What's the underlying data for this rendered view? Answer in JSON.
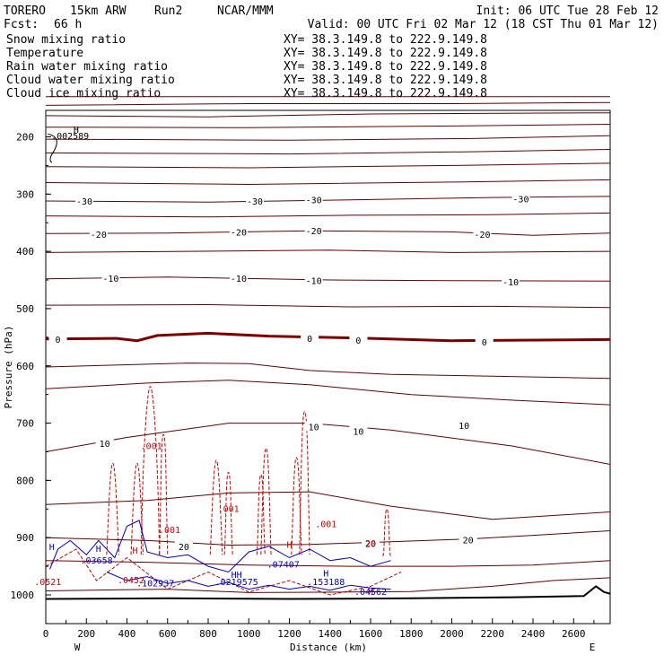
{
  "header": {
    "model": "TORERO",
    "resolution": "15km ARW",
    "run": "Run2",
    "org": "NCAR/MMM",
    "init": "Init: 06 UTC Tue 28 Feb 12",
    "fcst_label": "Fcst:",
    "fcst_value": "66 h",
    "valid": "Valid: 00 UTC Fri 02 Mar 12 (18 CST Thu 01 Mar 12)"
  },
  "colors": {
    "snow": "#000000",
    "temperature": "#660000",
    "rain": "#cc0000",
    "cloud_water": "#0000cc",
    "cloud_ice": "#000000",
    "xy_text": "#cc0000",
    "zero_isotherm": "#800000"
  },
  "chart_data": {
    "type": "cross-section",
    "xlabel": "Distance (km)",
    "ylabel": "Pressure (hPa)",
    "xlim": [
      0,
      2780
    ],
    "ylim": [
      1050,
      130
    ],
    "x_ticks": [
      "0",
      "200",
      "400",
      "600",
      "800",
      "1000",
      "1200",
      "1400",
      "1600",
      "1800",
      "2000",
      "2200",
      "2400",
      "2600"
    ],
    "y_ticks": [
      "200",
      "300",
      "400",
      "500",
      "600",
      "700",
      "800",
      "900",
      "1000"
    ],
    "endpoints": {
      "left": "W",
      "right": "E"
    },
    "legend": [
      {
        "name": "Snow mixing ratio",
        "color": "#000000",
        "xy": "XY= 38.3.149.8 to 222.9.149.8"
      },
      {
        "name": "Temperature",
        "color": "#cc0000",
        "xy": "XY= 38.3.149.8 to 222.9.149.8"
      },
      {
        "name": "Rain water mixing ratio",
        "color": "#cc0000",
        "xy": "XY= 38.3.149.8 to 222.9.149.8"
      },
      {
        "name": "Cloud water mixing ratio",
        "color": "#0000cc",
        "xy": "XY= 38.3.149.8 to 222.9.149.8"
      },
      {
        "name": "Cloud ice mixing ratio",
        "color": "#000000",
        "xy": "XY= 38.3.149.8 to 222.9.149.8"
      }
    ],
    "isotherm_labels": [
      {
        "text": "-30",
        "x": 190,
        "p": 312
      },
      {
        "text": "-30",
        "x": 1030,
        "p": 312
      },
      {
        "text": "-30",
        "x": 1320,
        "p": 310
      },
      {
        "text": "-30",
        "x": 2340,
        "p": 308
      },
      {
        "text": "-20",
        "x": 260,
        "p": 370
      },
      {
        "text": "-20",
        "x": 950,
        "p": 366
      },
      {
        "text": "-20",
        "x": 1320,
        "p": 364
      },
      {
        "text": "-20",
        "x": 2150,
        "p": 370
      },
      {
        "text": "-10",
        "x": 320,
        "p": 447
      },
      {
        "text": "-10",
        "x": 950,
        "p": 447
      },
      {
        "text": "-10",
        "x": 1320,
        "p": 451
      },
      {
        "text": "-10",
        "x": 2290,
        "p": 453
      },
      {
        "text": "0",
        "x": 60,
        "p": 553
      },
      {
        "text": "0",
        "x": 1300,
        "p": 552
      },
      {
        "text": "0",
        "x": 1540,
        "p": 555
      },
      {
        "text": "0",
        "x": 2160,
        "p": 558
      },
      {
        "text": "10",
        "x": 290,
        "p": 735
      },
      {
        "text": "10",
        "x": 1320,
        "p": 706
      },
      {
        "text": "10",
        "x": 1540,
        "p": 714
      },
      {
        "text": "10",
        "x": 2060,
        "p": 704
      },
      {
        "text": "20",
        "x": 680,
        "p": 915
      },
      {
        "text": "20",
        "x": 1600,
        "p": 910
      },
      {
        "text": "20",
        "x": 2080,
        "p": 904
      }
    ],
    "isotherms": [
      {
        "t": "t20",
        "pts": [
          [
            0,
            130
          ],
          [
            2780,
            130
          ]
        ]
      },
      {
        "t": "t21",
        "pts": [
          [
            0,
            145
          ],
          [
            1000,
            142
          ],
          [
            2000,
            142
          ],
          [
            2780,
            140
          ]
        ]
      },
      {
        "t": "t22",
        "pts": [
          [
            0,
            163
          ],
          [
            800,
            165
          ],
          [
            1600,
            160
          ],
          [
            2780,
            158
          ]
        ]
      },
      {
        "t": "t23",
        "pts": [
          [
            0,
            183
          ],
          [
            1000,
            184
          ],
          [
            2000,
            181
          ],
          [
            2780,
            178
          ]
        ]
      },
      {
        "t": "t24",
        "pts": [
          [
            0,
            204
          ],
          [
            1200,
            206
          ],
          [
            2100,
            203
          ],
          [
            2780,
            198
          ]
        ]
      },
      {
        "t": "t25",
        "pts": [
          [
            0,
            228
          ],
          [
            1200,
            230
          ],
          [
            2100,
            226
          ],
          [
            2780,
            222
          ]
        ]
      },
      {
        "t": "t26",
        "pts": [
          [
            0,
            252
          ],
          [
            1000,
            254
          ],
          [
            2000,
            250
          ],
          [
            2780,
            246
          ]
        ]
      },
      {
        "t": "t27",
        "pts": [
          [
            0,
            280
          ],
          [
            1000,
            283
          ],
          [
            2000,
            279
          ],
          [
            2780,
            275
          ]
        ]
      },
      {
        "t": "m30",
        "pts": [
          [
            0,
            312
          ],
          [
            800,
            314
          ],
          [
            1500,
            310
          ],
          [
            2200,
            306
          ],
          [
            2780,
            304
          ]
        ]
      },
      {
        "t": "m25",
        "pts": [
          [
            0,
            338
          ],
          [
            800,
            340
          ],
          [
            1500,
            337
          ],
          [
            2200,
            336
          ],
          [
            2780,
            333
          ]
        ]
      },
      {
        "t": "m20",
        "pts": [
          [
            0,
            369
          ],
          [
            600,
            368
          ],
          [
            1300,
            364
          ],
          [
            2000,
            366
          ],
          [
            2400,
            372
          ],
          [
            2780,
            368
          ]
        ]
      },
      {
        "t": "m15",
        "pts": [
          [
            0,
            402
          ],
          [
            700,
            400
          ],
          [
            1400,
            398
          ],
          [
            2000,
            402
          ],
          [
            2780,
            400
          ]
        ]
      },
      {
        "t": "m10",
        "pts": [
          [
            0,
            448
          ],
          [
            600,
            445
          ],
          [
            1400,
            450
          ],
          [
            2000,
            451
          ],
          [
            2780,
            452
          ]
        ]
      },
      {
        "t": "m05",
        "pts": [
          [
            0,
            494
          ],
          [
            800,
            493
          ],
          [
            1500,
            497
          ],
          [
            2200,
            496
          ],
          [
            2780,
            498
          ]
        ]
      },
      {
        "t": "z0",
        "pts": [
          [
            0,
            553
          ],
          [
            350,
            552
          ],
          [
            450,
            556
          ],
          [
            550,
            547
          ],
          [
            800,
            543
          ],
          [
            1100,
            548
          ],
          [
            1600,
            552
          ],
          [
            2000,
            556
          ],
          [
            2780,
            554
          ]
        ]
      },
      {
        "t": "p05",
        "pts": [
          [
            0,
            602
          ],
          [
            400,
            598
          ],
          [
            700,
            595
          ],
          [
            1000,
            596
          ],
          [
            1300,
            608
          ],
          [
            1700,
            615
          ],
          [
            2200,
            618
          ],
          [
            2780,
            622
          ]
        ]
      },
      {
        "t": "p07",
        "pts": [
          [
            0,
            640
          ],
          [
            500,
            630
          ],
          [
            900,
            625
          ],
          [
            1300,
            633
          ],
          [
            1800,
            650
          ],
          [
            2300,
            660
          ],
          [
            2780,
            668
          ]
        ]
      },
      {
        "t": "p10",
        "pts": [
          [
            0,
            750
          ],
          [
            400,
            725
          ],
          [
            900,
            700
          ],
          [
            1300,
            700
          ],
          [
            1700,
            712
          ],
          [
            2300,
            740
          ],
          [
            2780,
            772
          ]
        ]
      },
      {
        "t": "p15",
        "pts": [
          [
            0,
            842
          ],
          [
            500,
            835
          ],
          [
            900,
            822
          ],
          [
            1300,
            820
          ],
          [
            1700,
            845
          ],
          [
            2200,
            868
          ],
          [
            2780,
            855
          ]
        ]
      },
      {
        "t": "p20",
        "pts": [
          [
            0,
            900
          ],
          [
            500,
            905
          ],
          [
            900,
            913
          ],
          [
            1300,
            912
          ],
          [
            1700,
            907
          ],
          [
            2100,
            902
          ],
          [
            2400,
            896
          ],
          [
            2780,
            888
          ]
        ]
      },
      {
        "t": "p22",
        "pts": [
          [
            0,
            940
          ],
          [
            500,
            943
          ],
          [
            1000,
            948
          ],
          [
            1500,
            950
          ],
          [
            2000,
            950
          ],
          [
            2400,
            948
          ],
          [
            2780,
            940
          ]
        ]
      },
      {
        "t": "p25",
        "pts": [
          [
            0,
            993
          ],
          [
            600,
            990
          ],
          [
            1000,
            996
          ],
          [
            1500,
            995
          ],
          [
            1800,
            994
          ],
          [
            2200,
            985
          ],
          [
            2500,
            975
          ],
          [
            2780,
            970
          ]
        ]
      }
    ],
    "rain_labels": [
      {
        "text": ".001",
        "x": 520,
        "p": 745
      },
      {
        "text": ".001",
        "x": 900,
        "p": 855
      },
      {
        "text": ".001",
        "x": 610,
        "p": 892
      },
      {
        "text": ".001",
        "x": 1380,
        "p": 882
      },
      {
        "text": ".0452",
        "x": 420,
        "p": 980
      },
      {
        "text": ".0521",
        "x": 10,
        "p": 983
      },
      {
        "text": "H",
        "x": 440,
        "p": 928
      },
      {
        "text": "H",
        "x": 1200,
        "p": 918
      },
      {
        "text": "H",
        "x": 1600,
        "p": 999
      },
      {
        "text": "20",
        "x": 1600,
        "p": 915
      }
    ],
    "rain_cells": [
      {
        "x0": 300,
        "x1": 360,
        "p": 770
      },
      {
        "x0": 420,
        "x1": 480,
        "p": 770
      },
      {
        "x0": 470,
        "x1": 560,
        "p": 636
      },
      {
        "x0": 560,
        "x1": 600,
        "p": 720
      },
      {
        "x0": 810,
        "x1": 870,
        "p": 765
      },
      {
        "x0": 880,
        "x1": 920,
        "p": 786
      },
      {
        "x0": 1040,
        "x1": 1080,
        "p": 790
      },
      {
        "x0": 1060,
        "x1": 1110,
        "p": 744
      },
      {
        "x0": 1210,
        "x1": 1260,
        "p": 760
      },
      {
        "x0": 1250,
        "x1": 1300,
        "p": 680
      },
      {
        "x0": 1660,
        "x1": 1700,
        "p": 850
      }
    ],
    "cloud_water_labels": [
      {
        "text": "H",
        "x": 30,
        "p": 922
      },
      {
        "text": "H",
        "x": 260,
        "p": 925
      },
      {
        "text": ".03658",
        "x": 250,
        "p": 945
      },
      {
        "text": ".102937",
        "x": 540,
        "p": 985
      },
      {
        "text": "HH",
        "x": 940,
        "p": 970
      },
      {
        "text": ".0219575",
        "x": 940,
        "p": 983
      },
      {
        "text": ".07407",
        "x": 1170,
        "p": 952
      },
      {
        "text": "H",
        "x": 1380,
        "p": 968
      },
      {
        "text": ".153188",
        "x": 1380,
        "p": 983
      },
      {
        "text": ".04562",
        "x": 1600,
        "p": 1000
      }
    ],
    "snow_labels": [
      {
        "text": "H",
        "x": 150,
        "p": 193
      },
      {
        "text": ".002589",
        "x": 120,
        "p": 204
      }
    ]
  }
}
